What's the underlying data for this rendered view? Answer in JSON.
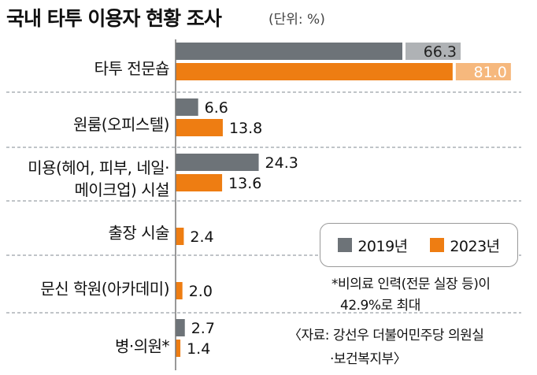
{
  "title": "국내 타투 이용자 현황 조사",
  "unit": "(단위: %)",
  "colors": {
    "2019": "#6d7378",
    "2023": "#ee7d12",
    "divider": "#9aa0a6"
  },
  "legend": {
    "series_2019": "2019년",
    "series_2023": "2023년"
  },
  "notes": {
    "note_line1": "*비의료 인력(전문 실장 등)이",
    "note_line2": "42.9%로 최대",
    "source_line1": "〈자료: 강선우 더불어민주당 의원실",
    "source_line2": "·보건복지부〉"
  },
  "chart_data": {
    "type": "bar",
    "orientation": "horizontal",
    "title": "국내 타투 이용자 현황 조사",
    "unit": "%",
    "categories": [
      [
        "타투 전문숍"
      ],
      [
        "원룸(오피스텔)"
      ],
      [
        "미용(헤어, 피부, 네일·",
        "메이크업) 시설"
      ],
      [
        "출장 시술"
      ],
      [
        "문신 학원(아카데미)"
      ],
      [
        "병·의원*"
      ]
    ],
    "series": [
      {
        "name": "2019년",
        "values": [
          66.3,
          6.6,
          24.3,
          null,
          null,
          2.7
        ]
      },
      {
        "name": "2023년",
        "values": [
          81.0,
          13.8,
          13.6,
          2.4,
          2.0,
          1.4
        ]
      }
    ],
    "value_labels": {
      "2019년": [
        "66.3",
        "6.6",
        "24.3",
        null,
        null,
        "2.7"
      ],
      "2023년": [
        "81.0",
        "13.8",
        "13.6",
        "2.4",
        "2.0",
        "1.4"
      ]
    },
    "xlim": [
      0,
      81
    ],
    "legend": "bottom-right"
  }
}
